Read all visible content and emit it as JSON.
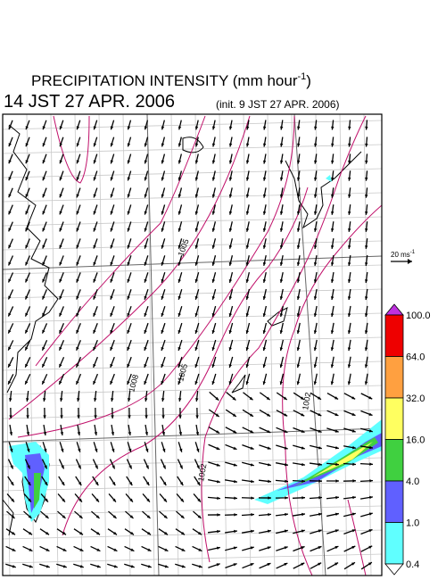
{
  "header": {
    "title": "PRECIPITATION INTENSITY (mm hour",
    "title_unit_power": "-1",
    "title_close": ")",
    "valid_time": "14 JST 27 APR. 2006",
    "init_time": "(init. 9 JST 27 APR. 2006)"
  },
  "wind_scale": {
    "label": "20 ms",
    "label_power": "-1"
  },
  "contour_labels": [
    "1005",
    "1008",
    "1005",
    "1002",
    "1002"
  ],
  "colorbar": {
    "levels": [
      {
        "label": "100.0",
        "color": "#ee0000"
      },
      {
        "label": "64.0",
        "color": "#ffa040"
      },
      {
        "label": "32.0",
        "color": "#ffff60"
      },
      {
        "label": "16.0",
        "color": "#40d040"
      },
      {
        "label": "4.0",
        "color": "#6060ff"
      },
      {
        "label": "1.0",
        "color": "#60ffff"
      },
      {
        "label": "0.4",
        "color": "#ffffff"
      }
    ],
    "over_color": "#c030e0"
  }
}
